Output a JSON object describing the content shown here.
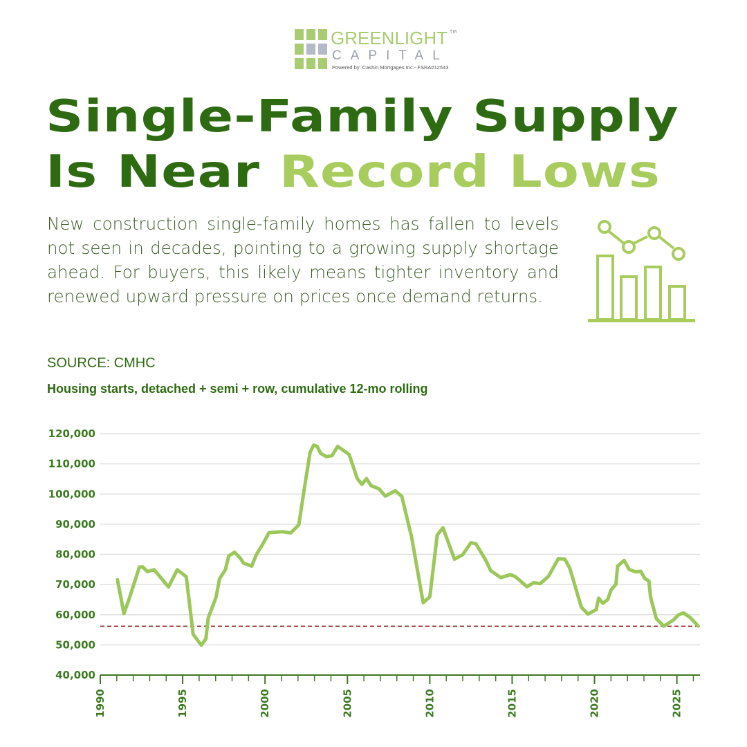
{
  "logo": {
    "name": "GREENLIGHT",
    "sub": "CAPITAL",
    "tm": "TM",
    "powered_by": "Powered by:  Cashin Mortgages Inc.- FSRA#12543"
  },
  "title": {
    "line1": "Single-Family Supply",
    "line2_prefix": "Is Near ",
    "line2_highlight": "Record Lows"
  },
  "description": "New construction single-family homes has fallen to levels not seen in decades, pointing to a growing supply shortage ahead. For buyers, this likely means tighter inventory and renewed upward pressure on prices once demand returns.",
  "source": "SOURCE: CMHC",
  "icon": "bar-line-chart-icon",
  "colors": {
    "dark_green": "#2e6a12",
    "light_green": "#a8cd5e",
    "line": "#9cc75a",
    "reference": "#8b1a1a",
    "axis": "#3d7a22"
  },
  "chart_data": {
    "type": "line",
    "title": "Housing starts, detached + semi + row, cumulative 12-mo rolling",
    "xlabel": "",
    "ylabel": "",
    "xlim": [
      1990,
      2026.4
    ],
    "ylim": [
      40000,
      120000
    ],
    "y_ticks": [
      40000,
      50000,
      60000,
      70000,
      80000,
      90000,
      100000,
      110000,
      120000
    ],
    "y_tick_labels": [
      "40,000",
      "50,000",
      "60,000",
      "70,000",
      "80,000",
      "90,000",
      "100,000",
      "110,000",
      "120,000"
    ],
    "x_ticks": [
      1990,
      1995,
      2000,
      2005,
      2010,
      2015,
      2020,
      2025
    ],
    "x_tick_labels": [
      "1990",
      "1995",
      "2000",
      "2005",
      "2010",
      "2015",
      "2020",
      "2025"
    ],
    "grid": true,
    "reference_line": {
      "y": 56200,
      "style": "dashed"
    },
    "series": [
      {
        "name": "Housing starts",
        "x": [
          1991.04,
          1991.43,
          1991.74,
          1992.37,
          1992.58,
          1992.86,
          1993.27,
          1993.97,
          1994.14,
          1994.67,
          1995.22,
          1995.64,
          1996.13,
          1996.41,
          1996.55,
          1997.03,
          1997.24,
          1997.59,
          1997.8,
          1998.15,
          1998.5,
          1998.7,
          1999.19,
          1999.47,
          1999.89,
          2000.24,
          2001.07,
          2001.56,
          2002.05,
          2002.4,
          2002.74,
          2002.95,
          2003.16,
          2003.37,
          2003.72,
          2004.07,
          2004.41,
          2005.1,
          2005.39,
          2005.6,
          2005.88,
          2006.16,
          2006.43,
          2006.92,
          2007.3,
          2007.9,
          2008.3,
          2008.9,
          2009.6,
          2010.0,
          2010.45,
          2010.8,
          2011.5,
          2012.0,
          2012.5,
          2012.8,
          2013.4,
          2013.7,
          2014.3,
          2014.9,
          2015.2,
          2015.9,
          2016.3,
          2016.7,
          2017.2,
          2017.8,
          2018.2,
          2018.5,
          2019.2,
          2019.6,
          2020.1,
          2020.25,
          2020.5,
          2020.8,
          2021.0,
          2021.3,
          2021.4,
          2021.8,
          2022.1,
          2022.5,
          2022.8,
          2023.05,
          2023.3,
          2023.4,
          2023.75,
          2024.2,
          2024.8,
          2025.1,
          2025.4,
          2025.8,
          2026.3
        ],
        "y": [
          71600,
          60400,
          65000,
          75800,
          75800,
          74300,
          74900,
          70300,
          69200,
          74900,
          72600,
          53500,
          49900,
          52000,
          58900,
          65800,
          71900,
          74900,
          79500,
          80700,
          78700,
          77100,
          76100,
          79900,
          83700,
          87200,
          87500,
          87100,
          89800,
          102400,
          113900,
          116200,
          115800,
          113500,
          112400,
          112700,
          115800,
          113100,
          108500,
          105100,
          103200,
          105100,
          102800,
          101700,
          99300,
          101100,
          99200,
          85600,
          64000,
          65900,
          86400,
          88800,
          78400,
          79900,
          83900,
          83500,
          78000,
          74600,
          72300,
          73300,
          72600,
          69300,
          70600,
          70300,
          72700,
          78600,
          78400,
          75400,
          62500,
          60200,
          61700,
          65500,
          63800,
          65000,
          68200,
          70100,
          76100,
          78000,
          75000,
          74200,
          74400,
          72000,
          71200,
          65900,
          58700,
          56200,
          58300,
          60000,
          60600,
          59100,
          56200
        ]
      }
    ]
  }
}
